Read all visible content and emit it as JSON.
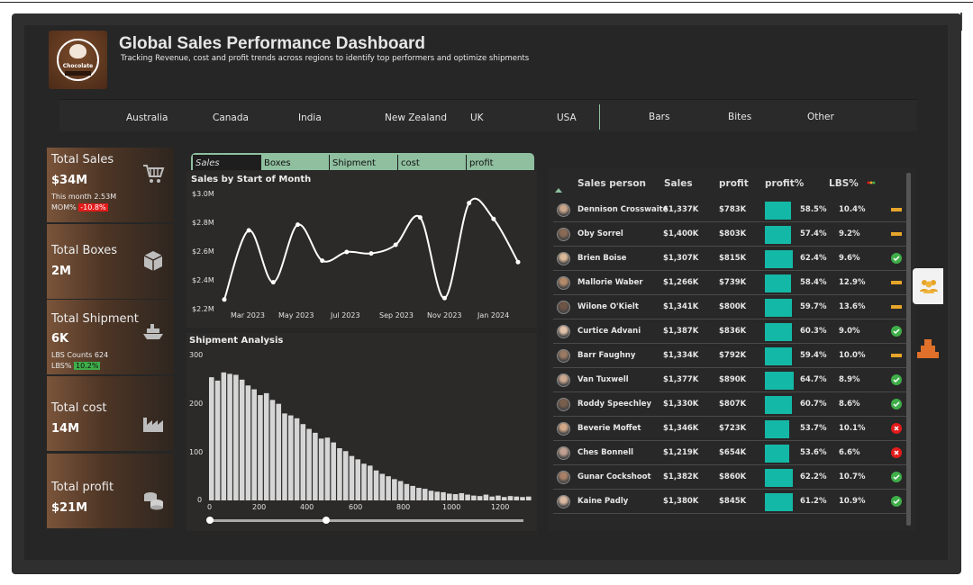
{
  "header": {
    "title": "Global Sales Performance Dashboard",
    "subtitle": "Tracking Revenue, cost and profit trends across regions to identify top performers and optimize shipments",
    "logo_text": "Chocolate"
  },
  "filters": {
    "regions": [
      "Australia",
      "Canada",
      "India",
      "New Zealand",
      "UK",
      "USA"
    ],
    "categories": [
      "Bars",
      "Bites",
      "Other"
    ]
  },
  "kpis": {
    "sales": {
      "label": "Total Sales",
      "value": "$34M",
      "month_text": "This month 2.53M",
      "mom_label": "MOM%",
      "mom_value": "-10.8%"
    },
    "boxes": {
      "label": "Total Boxes",
      "value": "2M"
    },
    "shipment": {
      "label": "Total Shipment",
      "value": "6K",
      "lbs_counts": "LBS Counts 624",
      "lbs_label": "LBS%",
      "lbs_value": "10.2%"
    },
    "cost": {
      "label": "Total cost",
      "value": "14M"
    },
    "profit": {
      "label": "Total profit",
      "value": "$21M"
    }
  },
  "tabs": [
    "Sales",
    "Boxes",
    "Shipment",
    "cost",
    "profit"
  ],
  "line_chart": {
    "title": "Sales by Start of Month",
    "y_ticks": [
      "$3.0M",
      "$2.8M",
      "$2.6M",
      "$2.4M",
      "$2.2M"
    ],
    "x_ticks": [
      "Mar 2023",
      "May 2023",
      "Jul 2023",
      "Sep 2023",
      "Nov 2023",
      "Jan 2024"
    ]
  },
  "hist_chart": {
    "title": "Shipment Analysis",
    "y_ticks": [
      "300",
      "200",
      "100",
      "0"
    ],
    "x_ticks": [
      "0",
      "200",
      "400",
      "600",
      "800",
      "1000",
      "1200"
    ]
  },
  "chart_data": [
    {
      "type": "line",
      "title": "Sales by Start of Month",
      "x": [
        "2023-02",
        "2023-03",
        "2023-04",
        "2023-05",
        "2023-06",
        "2023-07",
        "2023-08",
        "2023-09",
        "2023-10",
        "2023-11",
        "2023-12",
        "2024-01",
        "2024-02"
      ],
      "values": [
        2.27,
        2.75,
        2.39,
        2.79,
        2.54,
        2.6,
        2.59,
        2.65,
        2.84,
        2.28,
        2.94,
        2.83,
        2.53
      ],
      "ylim": [
        2.2,
        3.0
      ],
      "grid": false
    },
    {
      "type": "bar",
      "title": "Shipment Analysis",
      "x": [
        0,
        25,
        50,
        75,
        100,
        125,
        150,
        175,
        200,
        225,
        250,
        275,
        300,
        325,
        350,
        375,
        400,
        425,
        450,
        475,
        500,
        525,
        550,
        575,
        600,
        625,
        650,
        675,
        700,
        725,
        750,
        775,
        800,
        825,
        850,
        875,
        900,
        925,
        950,
        975,
        1000,
        1025,
        1050,
        1075,
        1100,
        1125,
        1150,
        1175,
        1200,
        1225,
        1250,
        1275,
        1300
      ],
      "values": [
        255,
        248,
        265,
        262,
        260,
        250,
        238,
        230,
        218,
        222,
        208,
        200,
        180,
        176,
        170,
        158,
        148,
        140,
        128,
        130,
        120,
        108,
        102,
        92,
        85,
        76,
        72,
        62,
        55,
        50,
        44,
        40,
        34,
        30,
        26,
        24,
        20,
        18,
        17,
        14,
        13,
        15,
        12,
        10,
        9,
        12,
        8,
        10,
        7,
        9,
        8,
        7,
        8
      ],
      "ylim": [
        0,
        300
      ],
      "xlim": [
        0,
        1300
      ]
    }
  ],
  "table": {
    "headers": [
      "Sales person",
      "Sales",
      "profit",
      "profit%",
      "LBS%"
    ],
    "rows": [
      {
        "name": "Dennison Crosswaite",
        "sales": "$1,337K",
        "profit": "$783K",
        "profit_pct": "58.5%",
        "pct_value": 58.5,
        "lbs": "10.4%",
        "status": "neutral"
      },
      {
        "name": "Oby Sorrel",
        "sales": "$1,400K",
        "profit": "$803K",
        "profit_pct": "57.4%",
        "pct_value": 57.4,
        "lbs": "9.2%",
        "status": "neutral"
      },
      {
        "name": "Brien Boise",
        "sales": "$1,307K",
        "profit": "$815K",
        "profit_pct": "62.4%",
        "pct_value": 62.4,
        "lbs": "9.6%",
        "status": "good"
      },
      {
        "name": "Mallorie Waber",
        "sales": "$1,266K",
        "profit": "$739K",
        "profit_pct": "58.4%",
        "pct_value": 58.4,
        "lbs": "12.9%",
        "status": "neutral"
      },
      {
        "name": "Wilone O'Kielt",
        "sales": "$1,341K",
        "profit": "$800K",
        "profit_pct": "59.7%",
        "pct_value": 59.7,
        "lbs": "13.6%",
        "status": "neutral"
      },
      {
        "name": "Curtice Advani",
        "sales": "$1,387K",
        "profit": "$836K",
        "profit_pct": "60.3%",
        "pct_value": 60.3,
        "lbs": "9.0%",
        "status": "good"
      },
      {
        "name": "Barr Faughny",
        "sales": "$1,334K",
        "profit": "$792K",
        "profit_pct": "59.4%",
        "pct_value": 59.4,
        "lbs": "10.0%",
        "status": "neutral"
      },
      {
        "name": "Van Tuxwell",
        "sales": "$1,377K",
        "profit": "$890K",
        "profit_pct": "64.7%",
        "pct_value": 64.7,
        "lbs": "8.9%",
        "status": "good"
      },
      {
        "name": "Roddy Speechley",
        "sales": "$1,330K",
        "profit": "$807K",
        "profit_pct": "60.7%",
        "pct_value": 60.7,
        "lbs": "8.6%",
        "status": "good"
      },
      {
        "name": "Beverie Moffet",
        "sales": "$1,346K",
        "profit": "$723K",
        "profit_pct": "53.7%",
        "pct_value": 53.7,
        "lbs": "10.1%",
        "status": "bad"
      },
      {
        "name": "Ches Bonnell",
        "sales": "$1,219K",
        "profit": "$654K",
        "profit_pct": "53.6%",
        "pct_value": 53.6,
        "lbs": "6.6%",
        "status": "bad"
      },
      {
        "name": "Gunar Cockshoot",
        "sales": "$1,382K",
        "profit": "$860K",
        "profit_pct": "62.2%",
        "pct_value": 62.2,
        "lbs": "10.7%",
        "status": "good"
      },
      {
        "name": "Kaine Padly",
        "sales": "$1,380K",
        "profit": "$845K",
        "profit_pct": "61.2%",
        "pct_value": 61.2,
        "lbs": "10.9%",
        "status": "good"
      }
    ]
  },
  "colors": {
    "accent": "#8fbf9f",
    "bar": "#14b8a6",
    "good": "#3fae49",
    "bad": "#e31b1b",
    "neutral": "#e6a52a"
  },
  "icons": {
    "sales": "cart-icon",
    "boxes": "box-icon",
    "shipment": "ship-icon",
    "cost": "factory-icon",
    "profit": "coins-icon"
  }
}
